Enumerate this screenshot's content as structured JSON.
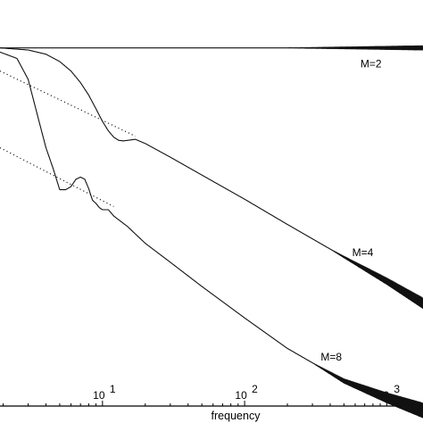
{
  "chart_data": {
    "type": "line",
    "title": "",
    "xlabel": "frequency",
    "ylabel": "",
    "xscale": "log",
    "xlim": [
      1.9,
      1800
    ],
    "ylim": [
      -3.4,
      0.15
    ],
    "grid": false,
    "x_ticks": [
      {
        "value": 10,
        "label": "10",
        "exp": "1"
      },
      {
        "value": 100,
        "label": "10",
        "exp": "2"
      },
      {
        "value": 1000,
        "label": "10",
        "exp": "3"
      }
    ],
    "series": [
      {
        "name": "M=2",
        "x": [
          1.9,
          3,
          5,
          10,
          30,
          100,
          300,
          1000,
          1800
        ],
        "y": [
          0,
          0,
          0,
          0,
          0,
          0,
          0,
          0,
          0
        ],
        "oscillation_from": 200,
        "oscillation_amp": 0.02
      },
      {
        "name": "M=4",
        "x": [
          1.9,
          3,
          4,
          5,
          6,
          7,
          8,
          9,
          10,
          11,
          12,
          13,
          14,
          15,
          17,
          20,
          30,
          50,
          100,
          200,
          500,
          1000,
          1800
        ],
        "y": [
          0,
          -0.02,
          -0.06,
          -0.13,
          -0.22,
          -0.33,
          -0.45,
          -0.58,
          -0.7,
          -0.79,
          -0.85,
          -0.88,
          -0.885,
          -0.88,
          -0.87,
          -0.91,
          -1.04,
          -1.21,
          -1.44,
          -1.68,
          -1.99,
          -2.22,
          -2.43
        ],
        "oscillation_from": 400,
        "oscillation_amp": 0.05
      },
      {
        "name": "M=8",
        "x": [
          1.9,
          2.5,
          3,
          3.5,
          4,
          4.5,
          5,
          5.5,
          6,
          6.5,
          7,
          7.5,
          8,
          8.5,
          9,
          9.5,
          10,
          11,
          12,
          15,
          20,
          30,
          50,
          100,
          200,
          500,
          1000,
          1800
        ],
        "y": [
          -0.04,
          -0.1,
          -0.3,
          -0.65,
          -0.95,
          -1.15,
          -1.35,
          -1.35,
          -1.32,
          -1.25,
          -1.23,
          -1.25,
          -1.34,
          -1.45,
          -1.48,
          -1.52,
          -1.54,
          -1.54,
          -1.6,
          -1.7,
          -1.86,
          -2.04,
          -2.27,
          -2.57,
          -2.86,
          -3.17,
          -3.33,
          -3.45
        ],
        "oscillation_from": 300,
        "oscillation_amp": 0.07
      }
    ],
    "asymptotes": [
      {
        "style": "dotted",
        "x": [
          1.9,
          17
        ],
        "y": [
          -0.22,
          -0.84
        ]
      },
      {
        "style": "dotted",
        "x": [
          1.9,
          12
        ],
        "y": [
          -0.95,
          -1.51
        ]
      }
    ]
  }
}
